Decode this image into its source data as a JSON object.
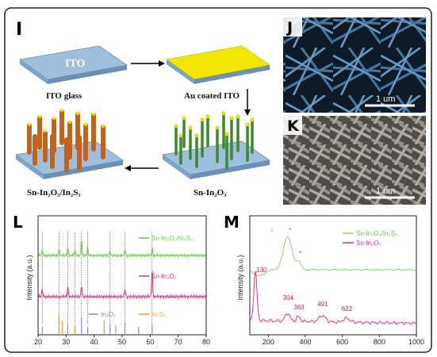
{
  "panels": {
    "i": {
      "letter": "I",
      "stages": {
        "ito_glass": "ITO glass",
        "ito_text": "ITO",
        "au_coated": "Au coated ITO",
        "sn_in2o3": "Sn-In₂O₃",
        "heterostructure": "Sn-In₂O₃/In₂S₃"
      }
    },
    "j": {
      "letter": "J",
      "scale": "1 um"
    },
    "k": {
      "letter": "K",
      "scale": "1 um"
    },
    "l": {
      "letter": "L",
      "ylabel": "Intensity (a.u.)",
      "legend": {
        "top": "Sn-In₂O₃/In₂S₃",
        "mid": "Sn-In₂O₃",
        "ref1": "In₂O₃",
        "ref2": "In₂S₃"
      },
      "colors": {
        "top": "#6ec84a",
        "mid": "#e8327f",
        "ref1": "#8a86d6",
        "ref2": "#f39a3c"
      }
    },
    "m": {
      "letter": "M",
      "ylabel": "Intensity (a.u.)",
      "legend": {
        "top": "Sn-In₂O₃/In₂S₃",
        "bottom": "Sn-In₂O₃"
      },
      "peak_labels": [
        "130",
        "304",
        "363",
        "491",
        "622"
      ],
      "colors": {
        "top": "#8fd07a",
        "bottom": "#e8327f"
      }
    }
  },
  "chart_data": [
    {
      "type": "line",
      "panel": "L",
      "xlim": [
        20,
        80
      ],
      "xticks": [
        "20",
        "30",
        "40",
        "50",
        "60",
        "70",
        "80"
      ],
      "ylabel": "Intensity (a.u.)",
      "series": [
        {
          "name": "Sn-In₂O₃/In₂S₃",
          "peaks_x": [
            21.5,
            27.5,
            30.6,
            33.1,
            35.5,
            37.7,
            45.7,
            51.0,
            60.7
          ]
        },
        {
          "name": "Sn-In₂O₃",
          "peaks_x": [
            21.5,
            30.6,
            35.5,
            51.0,
            60.7
          ]
        },
        {
          "name": "In₂O₃",
          "sticks_x": [
            21.5,
            30.6,
            35.5,
            37.7,
            45.7,
            51.0,
            55.9,
            60.7
          ]
        },
        {
          "name": "In₂S₃",
          "sticks_x": [
            27.4,
            28.7,
            33.2,
            43.6,
            47.7
          ]
        }
      ]
    },
    {
      "type": "line",
      "panel": "M",
      "xlim": [
        100,
        1000
      ],
      "xticks": [
        "200",
        "400",
        "600",
        "800",
        "1000"
      ],
      "ylabel": "Intensity (a.u.)",
      "series": [
        {
          "name": "Sn-In₂O₃/In₂S₃",
          "peaks_x": [
            304,
            363
          ]
        },
        {
          "name": "Sn-In₂O₃",
          "peaks_x": [
            130,
            304,
            363,
            491,
            622
          ]
        }
      ]
    }
  ]
}
